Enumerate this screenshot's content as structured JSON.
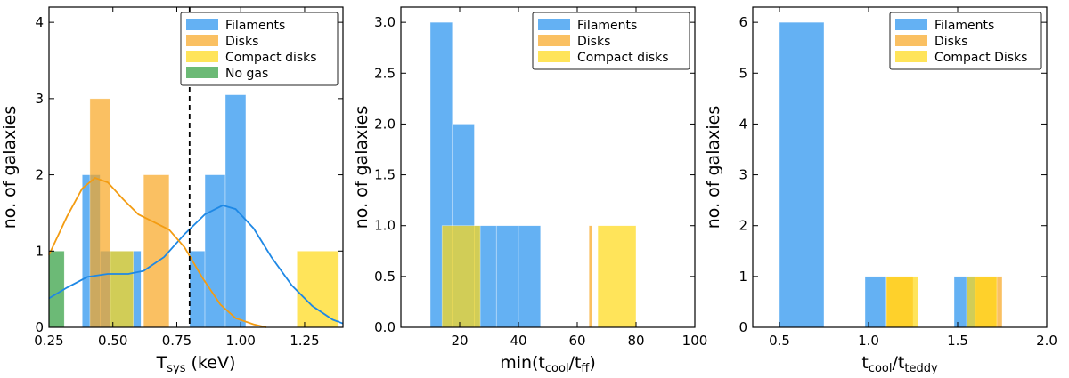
{
  "chart_data": [
    {
      "type": "histogram",
      "xlabel": "T",
      "xlabel_sub": "sys",
      "xlabel_unit": " (keV)",
      "ylabel": "no. of galaxies",
      "xlim": [
        0.25,
        1.4
      ],
      "ylim": [
        0,
        4.2
      ],
      "xticks": [
        0.25,
        0.5,
        0.75,
        1.0,
        1.25
      ],
      "xtick_labels": [
        "0.25",
        "0.50",
        "0.75",
        "1.00",
        "1.25"
      ],
      "yticks": [
        0,
        1,
        2,
        3,
        4
      ],
      "ytick_labels": [
        "0",
        "1",
        "2",
        "3",
        "4"
      ],
      "vline": 0.8,
      "series": [
        {
          "name": "Filaments",
          "color": "#3d9df0",
          "opacity": 0.8,
          "bins": [
            [
              0.38,
              0.45,
              2
            ],
            [
              0.45,
              0.52,
              1
            ],
            [
              0.52,
              0.61,
              1
            ],
            [
              0.8,
              0.86,
              1
            ],
            [
              0.86,
              0.94,
              2
            ],
            [
              0.94,
              1.02,
              3.05
            ]
          ]
        },
        {
          "name": "Disks",
          "color": "#f8a520",
          "opacity": 0.7,
          "bins": [
            [
              0.41,
              0.49,
              3
            ],
            [
              0.62,
              0.72,
              2
            ]
          ]
        },
        {
          "name": "Compact disks",
          "color": "#ffd814",
          "opacity": 0.7,
          "bins": [
            [
              0.49,
              0.58,
              1
            ],
            [
              1.22,
              1.38,
              1
            ]
          ]
        },
        {
          "name": "No gas",
          "color": "#2d9c3c",
          "opacity": 0.7,
          "bins": [
            [
              0.25,
              0.31,
              1
            ]
          ]
        }
      ],
      "kde": [
        {
          "name": "Filaments",
          "color": "#1e88e5",
          "points": [
            [
              0.25,
              0.38
            ],
            [
              0.32,
              0.52
            ],
            [
              0.4,
              0.66
            ],
            [
              0.48,
              0.7
            ],
            [
              0.56,
              0.7
            ],
            [
              0.62,
              0.74
            ],
            [
              0.7,
              0.92
            ],
            [
              0.78,
              1.22
            ],
            [
              0.86,
              1.48
            ],
            [
              0.93,
              1.6
            ],
            [
              0.98,
              1.55
            ],
            [
              1.05,
              1.3
            ],
            [
              1.12,
              0.92
            ],
            [
              1.2,
              0.55
            ],
            [
              1.28,
              0.28
            ],
            [
              1.36,
              0.1
            ],
            [
              1.4,
              0.05
            ]
          ]
        },
        {
          "name": "Disks",
          "color": "#f39c12",
          "points": [
            [
              0.25,
              0.95
            ],
            [
              0.32,
              1.45
            ],
            [
              0.38,
              1.82
            ],
            [
              0.43,
              1.96
            ],
            [
              0.48,
              1.9
            ],
            [
              0.54,
              1.68
            ],
            [
              0.6,
              1.48
            ],
            [
              0.66,
              1.38
            ],
            [
              0.72,
              1.28
            ],
            [
              0.78,
              1.05
            ],
            [
              0.85,
              0.65
            ],
            [
              0.92,
              0.3
            ],
            [
              0.98,
              0.12
            ],
            [
              1.05,
              0.04
            ],
            [
              1.1,
              0.0
            ]
          ]
        }
      ],
      "legend": [
        "Filaments",
        "Disks",
        "Compact disks",
        "No gas"
      ],
      "legend_position": "top-right"
    },
    {
      "type": "histogram",
      "xlabel": "min(t",
      "xlabel_sub": "cool",
      "xlabel_mid": "/t",
      "xlabel_sub2": "ff",
      "xlabel_end": ")",
      "ylabel": "no. of galaxies",
      "xlim": [
        0,
        100
      ],
      "ylim": [
        0,
        3.15
      ],
      "xticks": [
        20,
        40,
        60,
        80,
        100
      ],
      "xtick_labels": [
        "20",
        "40",
        "60",
        "80",
        "100"
      ],
      "yticks": [
        0,
        0.5,
        1.0,
        1.5,
        2.0,
        2.5,
        3.0
      ],
      "ytick_labels": [
        "0.0",
        "0.5",
        "1.0",
        "1.5",
        "2.0",
        "2.5",
        "3.0"
      ],
      "series": [
        {
          "name": "Filaments",
          "color": "#3d9df0",
          "opacity": 0.8,
          "bins": [
            [
              10,
              17.5,
              3
            ],
            [
              17.5,
              25,
              2
            ],
            [
              25,
              32.5,
              1
            ],
            [
              32.5,
              40,
              1
            ],
            [
              40,
              47.5,
              1
            ]
          ]
        },
        {
          "name": "Disks",
          "color": "#f8a520",
          "opacity": 0.7,
          "bins": [
            [
              64,
              65,
              1
            ]
          ]
        },
        {
          "name": "Compact disks",
          "color": "#ffd814",
          "opacity": 0.7,
          "bins": [
            [
              14,
              27,
              1
            ],
            [
              67,
              80,
              1
            ]
          ]
        }
      ],
      "legend": [
        "Filaments",
        "Disks",
        "Compact disks"
      ],
      "legend_position": "top-right"
    },
    {
      "type": "histogram",
      "xlabel": "t",
      "xlabel_sub": "cool",
      "xlabel_mid": "/t",
      "xlabel_sub2": "teddy",
      "xlabel_end": "",
      "ylabel": "no. of galaxies",
      "xlim": [
        0.35,
        2.0
      ],
      "ylim": [
        0,
        6.3
      ],
      "xticks": [
        0.5,
        1.0,
        1.5,
        2.0
      ],
      "xtick_labels": [
        "0.5",
        "1.0",
        "1.5",
        "2.0"
      ],
      "yticks": [
        0,
        1,
        2,
        3,
        4,
        5,
        6
      ],
      "ytick_labels": [
        "0",
        "1",
        "2",
        "3",
        "4",
        "5",
        "6"
      ],
      "series": [
        {
          "name": "Filaments",
          "color": "#3d9df0",
          "opacity": 0.8,
          "bins": [
            [
              0.5,
              0.75,
              6
            ],
            [
              0.98,
              1.1,
              1
            ],
            [
              1.48,
              1.6,
              1
            ]
          ]
        },
        {
          "name": "Disks",
          "color": "#f8a520",
          "opacity": 0.7,
          "bins": [
            [
              1.1,
              1.25,
              1
            ],
            [
              1.6,
              1.75,
              1
            ]
          ]
        },
        {
          "name": "Compact disks",
          "color": "#ffd814",
          "opacity": 0.7,
          "bins": [
            [
              1.1,
              1.28,
              1
            ],
            [
              1.55,
              1.72,
              1
            ]
          ]
        }
      ],
      "legend": [
        "Filaments",
        "Disks",
        "Compact Disks"
      ],
      "legend_position": "top-right"
    }
  ]
}
